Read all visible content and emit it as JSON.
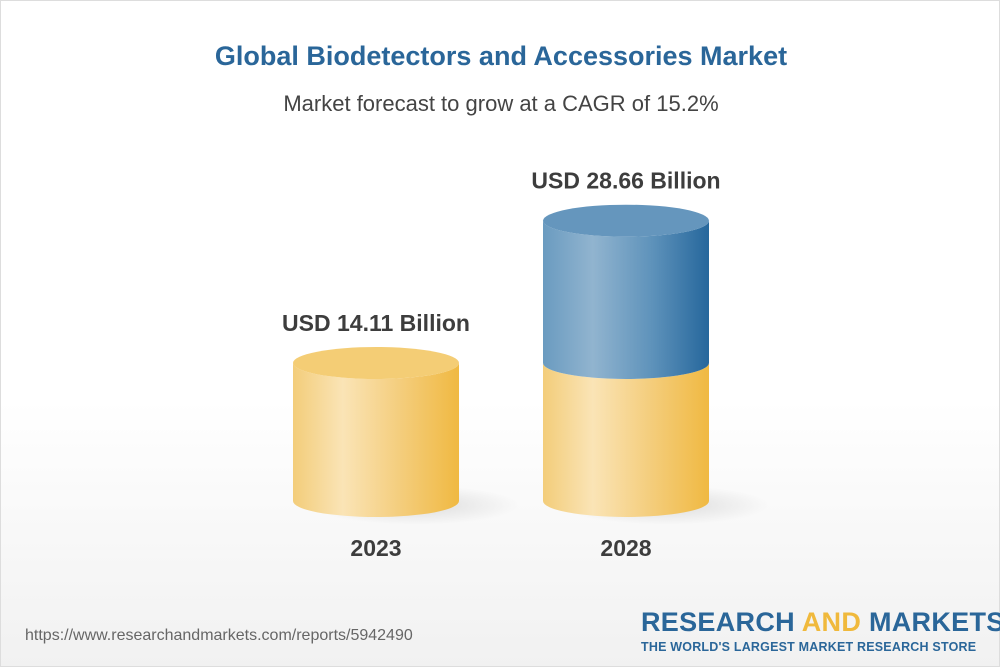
{
  "header": {
    "title": "Global Biodetectors and Accessories Market",
    "subtitle": "Market forecast to grow at a CAGR of 15.2%"
  },
  "chart_data": {
    "type": "bar",
    "style": "3d-cylinder",
    "categories": [
      "2023",
      "2028"
    ],
    "values": [
      14.11,
      28.66
    ],
    "value_labels": [
      "USD 14.11 Billion",
      "USD 28.66 Billion"
    ],
    "unit": "USD Billion",
    "growth_rate_cagr_percent": 15.2,
    "colors": {
      "base": "#f2c053",
      "growth": "#2d6a9c"
    }
  },
  "footer": {
    "url": "https://www.researchandmarkets.com/reports/5942490",
    "logo_word1": "RESEARCH",
    "logo_word2": "AND",
    "logo_word3": "MARKETS",
    "logo_tagline": "THE WORLD'S LARGEST MARKET RESEARCH STORE"
  }
}
